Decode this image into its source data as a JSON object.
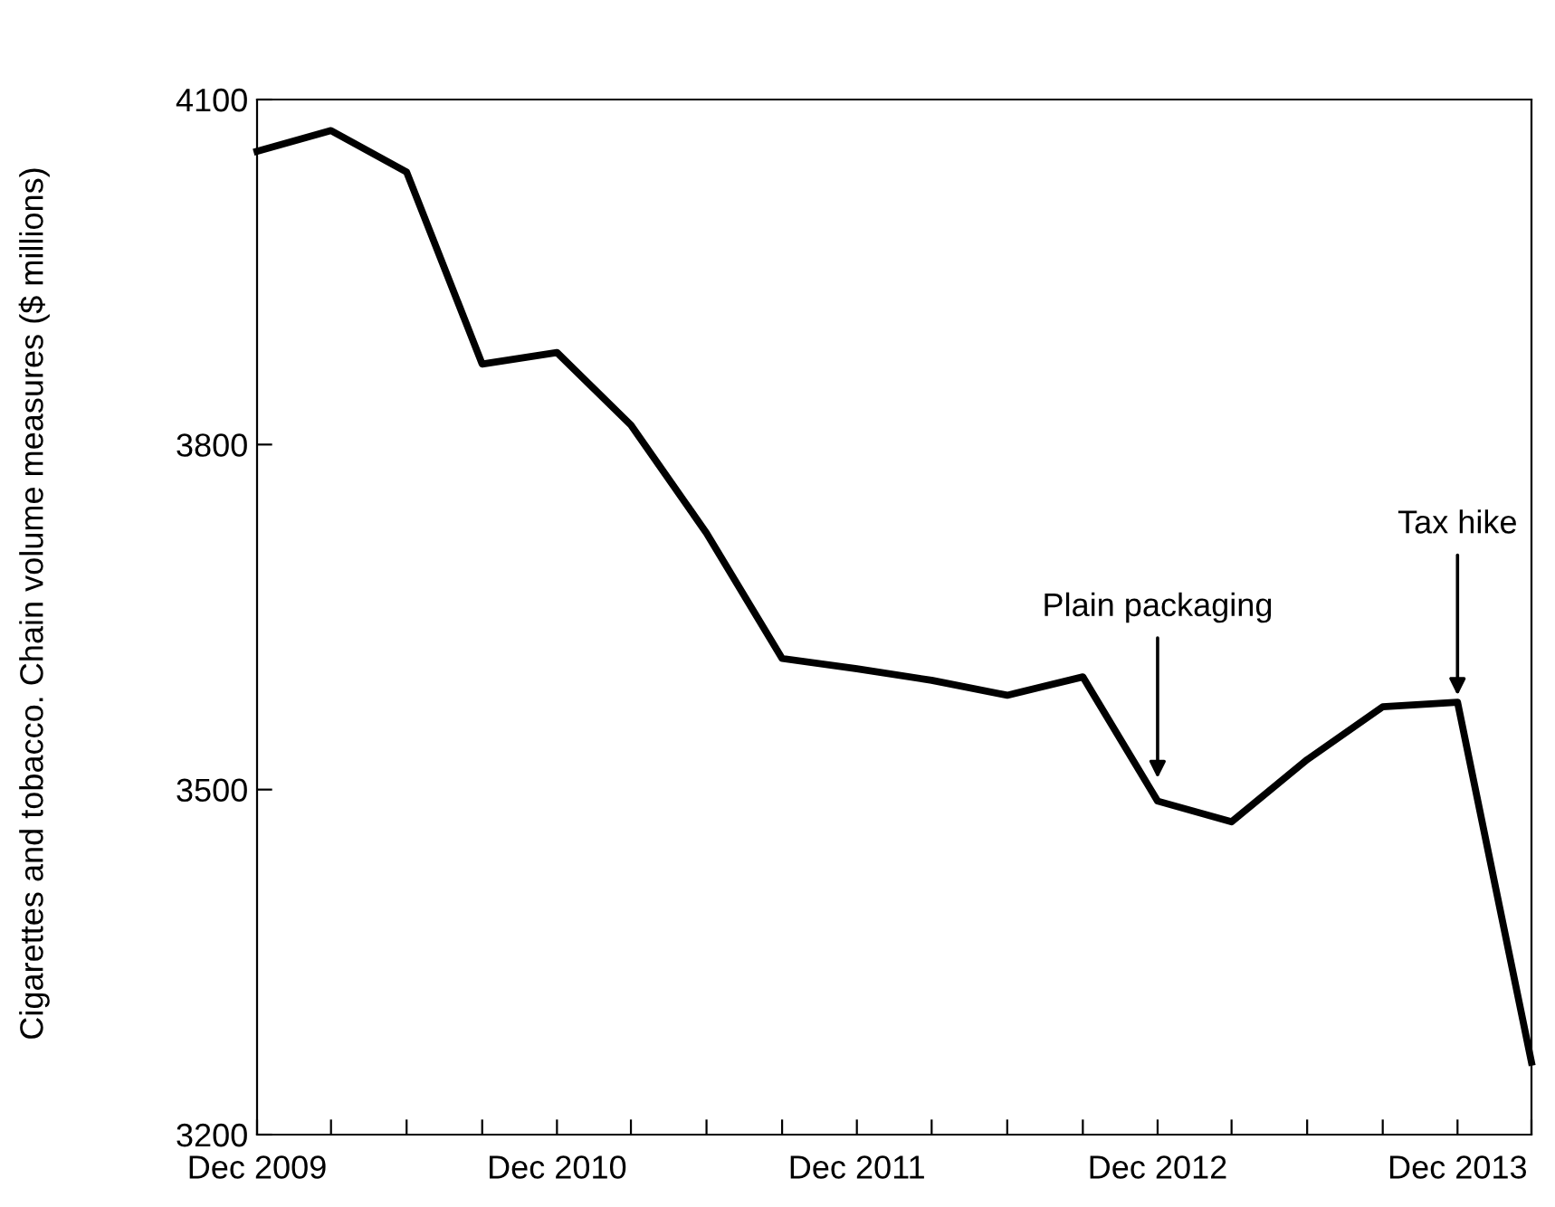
{
  "chart_data": {
    "type": "line",
    "ylabel": "Cigarettes and tobacco. Chain volume measures ($ millions)",
    "x": [
      "2009-12",
      "2010-03",
      "2010-06",
      "2010-09",
      "2010-12",
      "2011-03",
      "2011-06",
      "2011-09",
      "2011-12",
      "2012-03",
      "2012-06",
      "2012-09",
      "2012-12",
      "2013-03",
      "2013-06",
      "2013-09",
      "2013-12",
      "2014-03"
    ],
    "series": [
      {
        "color": "#000000",
        "values": [
          4055,
          4073,
          4037,
          3870,
          3880,
          3817,
          3723,
          3614,
          3605,
          3595,
          3582,
          3598,
          3490,
          3472,
          3526,
          3572,
          3576,
          3263
        ]
      }
    ],
    "xlim": [
      "2009-12",
      "2014-03"
    ],
    "xticks": [
      {
        "value": "2009-12",
        "label": "Dec 2009"
      },
      {
        "value": "2010-03",
        "label": null
      },
      {
        "value": "2010-06",
        "label": null
      },
      {
        "value": "2010-09",
        "label": null
      },
      {
        "value": "2010-12",
        "label": "Dec 2010"
      },
      {
        "value": "2011-03",
        "label": null
      },
      {
        "value": "2011-06",
        "label": null
      },
      {
        "value": "2011-09",
        "label": null
      },
      {
        "value": "2011-12",
        "label": "Dec 2011"
      },
      {
        "value": "2012-03",
        "label": null
      },
      {
        "value": "2012-06",
        "label": null
      },
      {
        "value": "2012-09",
        "label": null
      },
      {
        "value": "2012-12",
        "label": "Dec 2012"
      },
      {
        "value": "2013-03",
        "label": null
      },
      {
        "value": "2013-06",
        "label": null
      },
      {
        "value": "2013-09",
        "label": null
      },
      {
        "value": "2013-12",
        "label": "Dec 2013"
      },
      {
        "value": "2014-03",
        "label": null
      }
    ],
    "ylim": [
      3200,
      4100
    ],
    "yticks": [
      3200,
      3500,
      3800,
      4100
    ],
    "grid": false,
    "legend": false,
    "marker": "none",
    "line_style": "solid",
    "annotations": [
      {
        "text": "Plain packaging",
        "x": "2012-12",
        "y": 3510
      },
      {
        "text": "Tax hike",
        "x": "2013-12",
        "y": 3582
      }
    ]
  }
}
